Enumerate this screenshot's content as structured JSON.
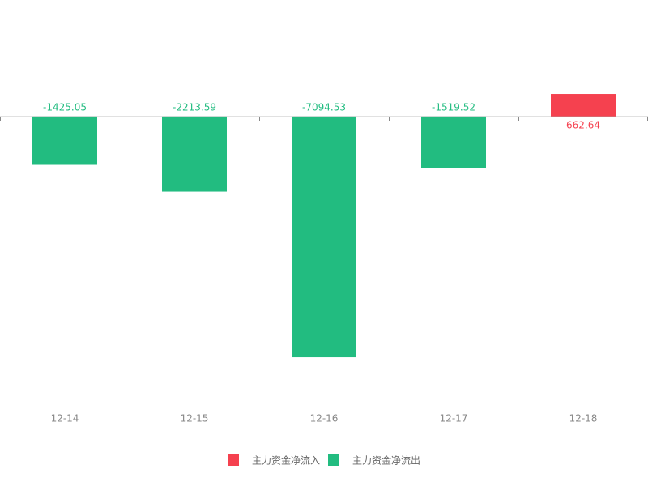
{
  "chart_data": {
    "type": "bar",
    "categories": [
      "12-14",
      "12-15",
      "12-16",
      "12-17",
      "12-18"
    ],
    "series": [
      {
        "name": "主力资金净流入",
        "color": "#f5414f",
        "values": [
          null,
          null,
          null,
          null,
          662.64
        ]
      },
      {
        "name": "主力资金净流出",
        "color": "#22bc80",
        "values": [
          -1425.05,
          -2213.59,
          -7094.53,
          -1519.52,
          null
        ]
      }
    ],
    "ylim": [
      -8000,
      2000
    ]
  }
}
